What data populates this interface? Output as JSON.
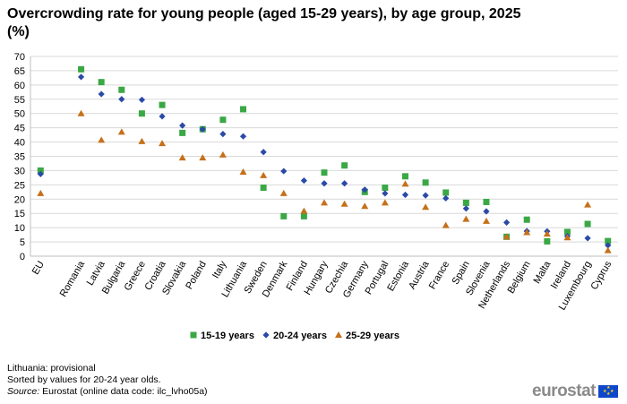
{
  "title": "Overcrowding rate for young people (aged 15-29 years), by age group, 2025 (%)",
  "chart_data": {
    "type": "scatter",
    "categories": [
      "EU",
      "Romania",
      "Latvia",
      "Bulgaria",
      "Greece",
      "Croatia",
      "Slovakia",
      "Poland",
      "Italy",
      "Lithuania",
      "Sweden",
      "Denmark",
      "Finland",
      "Hungary",
      "Czechia",
      "Germany",
      "Portugal",
      "Estonia",
      "Austria",
      "France",
      "Spain",
      "Slovenia",
      "Netherlands",
      "Belgium",
      "Malta",
      "Ireland",
      "Luxembourg",
      "Cyprus"
    ],
    "gap_after_index": 0,
    "ylim": [
      0,
      70
    ],
    "yticks": [
      0,
      5,
      10,
      15,
      20,
      25,
      30,
      35,
      40,
      45,
      50,
      55,
      60,
      65,
      70
    ],
    "grid": true,
    "legend_position": "bottom",
    "series": [
      {
        "name": "15-19 years",
        "marker": "square",
        "color": "#3aa845",
        "values": [
          30.0,
          65.5,
          61.0,
          58.3,
          50.0,
          53.0,
          43.2,
          44.5,
          47.8,
          51.5,
          24.0,
          14.0,
          14.0,
          29.3,
          31.8,
          22.5,
          24.0,
          28.0,
          25.8,
          22.3,
          18.7,
          19.0,
          6.8,
          12.8,
          5.2,
          8.5,
          11.3,
          5.3
        ]
      },
      {
        "name": "20-24 years",
        "marker": "diamond",
        "color": "#2a4aa8",
        "values": [
          28.8,
          62.8,
          56.8,
          55.0,
          54.8,
          49.0,
          45.8,
          44.5,
          42.8,
          42.0,
          36.5,
          29.8,
          26.5,
          25.5,
          25.5,
          23.3,
          22.0,
          21.5,
          21.3,
          20.3,
          16.7,
          15.7,
          11.8,
          8.8,
          8.7,
          7.0,
          6.3,
          3.8
        ]
      },
      {
        "name": "25-29 years",
        "marker": "triangle",
        "color": "#c6701a",
        "values": [
          22.0,
          50.0,
          40.7,
          43.5,
          40.2,
          39.5,
          34.5,
          34.5,
          35.5,
          29.5,
          28.3,
          22.0,
          15.8,
          18.7,
          18.3,
          17.5,
          18.7,
          25.3,
          17.2,
          10.8,
          13.0,
          12.3,
          6.8,
          8.3,
          7.8,
          6.5,
          18.0,
          2.0
        ]
      }
    ]
  },
  "notes": {
    "line1": "Lithuania: provisional",
    "line2": "Sorted by values for 20-24 year olds.",
    "source_label": "Source:",
    "source_text": " Eurostat (online data code: ilc_lvho05a)"
  },
  "logo": {
    "text": "eurostat",
    "flag_color": "#0e47cb"
  }
}
